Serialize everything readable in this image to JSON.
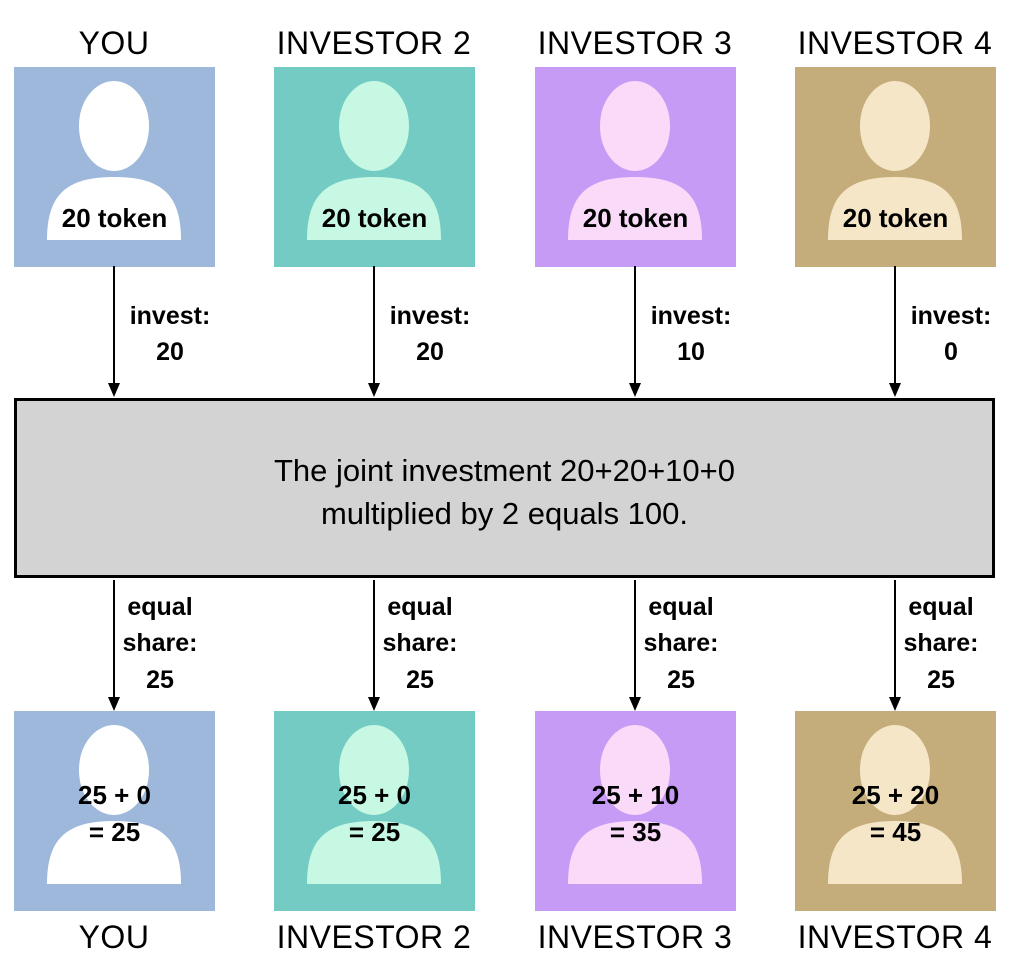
{
  "investors": [
    {
      "top_label": "YOU",
      "bottom_label": "YOU",
      "tokens": "20 token",
      "invest": [
        "invest:",
        "20"
      ],
      "share": [
        "equal",
        "share:",
        "25"
      ],
      "result": [
        "25 + 0",
        "= 25"
      ],
      "colors": {
        "bg": "#9eb8dc",
        "figure": "#ffffff",
        "outline": "#9eb8dc"
      }
    },
    {
      "top_label": "INVESTOR 2",
      "bottom_label": "INVESTOR 2",
      "tokens": "20 token",
      "invest": [
        "invest:",
        "20"
      ],
      "share": [
        "equal",
        "share:",
        "25"
      ],
      "result": [
        "25 + 0",
        "= 25"
      ],
      "colors": {
        "bg": "#73cbc4",
        "figure": "#c6f8e4",
        "outline": "#73cbc4"
      }
    },
    {
      "top_label": "INVESTOR 3",
      "bottom_label": "INVESTOR 3",
      "tokens": "20 token",
      "invest": [
        "invest:",
        "10"
      ],
      "share": [
        "equal",
        "share:",
        "25"
      ],
      "result": [
        "25 + 10",
        "= 35"
      ],
      "colors": {
        "bg": "#c59bf6",
        "figure": "#f9daf9",
        "outline": "#c59bf6"
      }
    },
    {
      "top_label": "INVESTOR 4",
      "bottom_label": "INVESTOR 4",
      "tokens": "20 token",
      "invest": [
        "invest:",
        "0"
      ],
      "share": [
        "equal",
        "share:",
        "25"
      ],
      "result": [
        "25 + 20",
        "= 45"
      ],
      "colors": {
        "bg": "#c4ac7b",
        "figure": "#f4e6c7",
        "outline": "#c4ac7b"
      }
    }
  ],
  "central": {
    "line1": "The joint investment 20+20+10+0",
    "line2": "multiplied by 2 equals  100."
  },
  "colors": {
    "box_bg": "#d3d3d3",
    "line": "#000000"
  }
}
